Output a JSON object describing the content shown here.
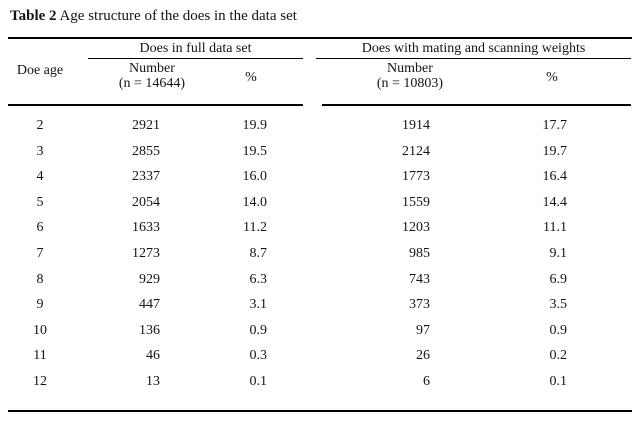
{
  "title": {
    "prefix": "Table 2",
    "text": " Age structure of the does in the data set"
  },
  "table": {
    "corner_header": "Doe age",
    "group_full": {
      "label": "Does in full data set",
      "number_header_line1": "Number",
      "number_header_line2": "(n = 14644)",
      "percent_header": "%"
    },
    "group_mating_scanning": {
      "label": "Does with mating and scanning weights",
      "number_header_line1": "Number",
      "number_header_line2": "(n = 10803)",
      "percent_header": "%"
    },
    "rows": [
      {
        "age": "2",
        "n_full": "2921",
        "pct_full": "19.9",
        "n_ms": "1914",
        "pct_ms": "17.7"
      },
      {
        "age": "3",
        "n_full": "2855",
        "pct_full": "19.5",
        "n_ms": "2124",
        "pct_ms": "19.7"
      },
      {
        "age": "4",
        "n_full": "2337",
        "pct_full": "16.0",
        "n_ms": "1773",
        "pct_ms": "16.4"
      },
      {
        "age": "5",
        "n_full": "2054",
        "pct_full": "14.0",
        "n_ms": "1559",
        "pct_ms": "14.4"
      },
      {
        "age": "6",
        "n_full": "1633",
        "pct_full": "11.2",
        "n_ms": "1203",
        "pct_ms": "11.1"
      },
      {
        "age": "7",
        "n_full": "1273",
        "pct_full": "8.7",
        "n_ms": "985",
        "pct_ms": "9.1"
      },
      {
        "age": "8",
        "n_full": "929",
        "pct_full": "6.3",
        "n_ms": "743",
        "pct_ms": "6.9"
      },
      {
        "age": "9",
        "n_full": "447",
        "pct_full": "3.1",
        "n_ms": "373",
        "pct_ms": "3.5"
      },
      {
        "age": "10",
        "n_full": "136",
        "pct_full": "0.9",
        "n_ms": "97",
        "pct_ms": "0.9"
      },
      {
        "age": "11",
        "n_full": "46",
        "pct_full": "0.3",
        "n_ms": "26",
        "pct_ms": "0.2"
      },
      {
        "age": "12",
        "n_full": "13",
        "pct_full": "0.1",
        "n_ms": "6",
        "pct_ms": "0.1"
      }
    ]
  },
  "colors": {
    "background": "#ffffff",
    "text": "#141414",
    "rule": "#000000"
  }
}
